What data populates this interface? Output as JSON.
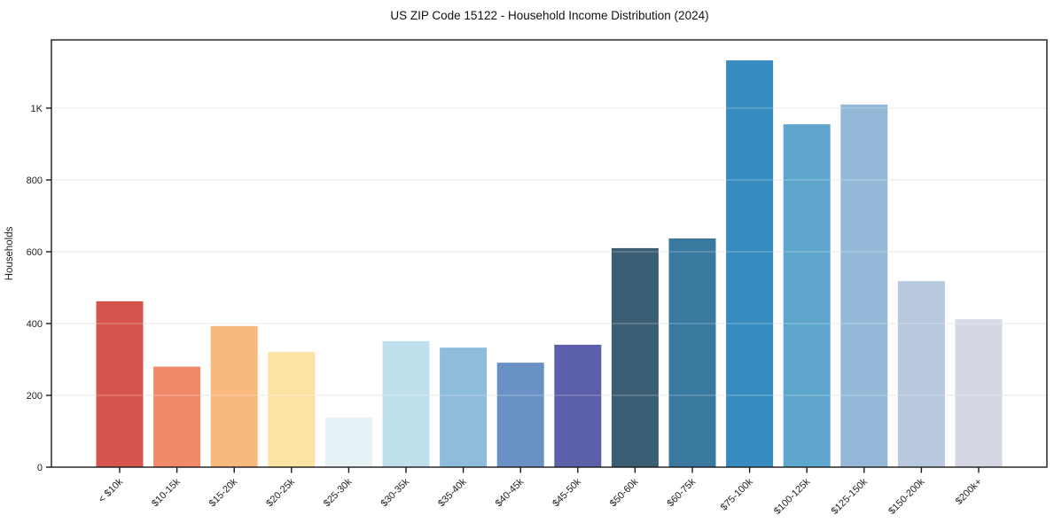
{
  "figure": {
    "background": "#ffffff"
  },
  "colors": {
    "grid": "#e8e8e8",
    "grid_overlay": "rgba(255,255,255,0.28)",
    "spine": "#1a1a1a",
    "text": "#222222"
  },
  "chart_data": {
    "type": "bar",
    "title": "US ZIP Code 15122 - Household Income Distribution (2024)",
    "xlabel": "",
    "ylabel": "Households",
    "categories": [
      "< $10k",
      "$10-15k",
      "$15-20k",
      "$20-25k",
      "$25-30k",
      "$30-35k",
      "$35-40k",
      "$40-45k",
      "$45-50k",
      "$50-60k",
      "$60-75k",
      "$75-100k",
      "$100-125k",
      "$125-150k",
      "$150-200k",
      "$200k+"
    ],
    "values": [
      462,
      280,
      393,
      321,
      138,
      351,
      333,
      291,
      341,
      610,
      637,
      1133,
      955,
      1010,
      518,
      412
    ],
    "bar_colors": [
      "#d6544e",
      "#f3896b",
      "#fab97c",
      "#fce3a3",
      "#e7f2f7",
      "#bfe0ec",
      "#90bcdc",
      "#6991c4",
      "#5c5faa",
      "#3a5f74",
      "#39789f",
      "#368cc0",
      "#5fa6cd",
      "#93b8d8",
      "#b8c8df",
      "#d5d8e4"
    ],
    "ylim": [
      0,
      1190
    ],
    "yticks": {
      "values": [
        0,
        200,
        400,
        600,
        800,
        1000
      ],
      "labels": [
        "0",
        "200",
        "400",
        "600",
        "800",
        "1K"
      ]
    },
    "grid": true,
    "legend": null,
    "x_tick_rotation": 45
  }
}
